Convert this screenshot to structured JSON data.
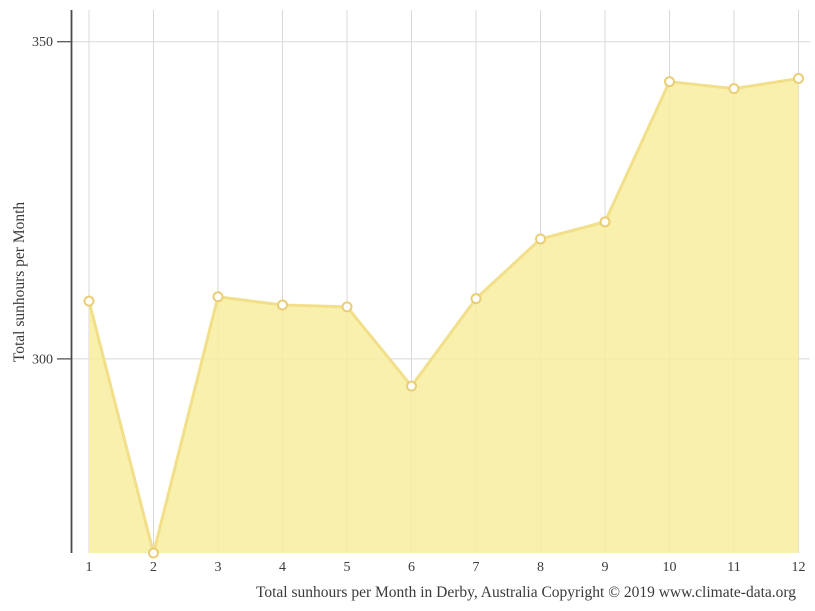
{
  "chart_data": {
    "type": "area",
    "x": [
      1,
      2,
      3,
      4,
      5,
      6,
      7,
      8,
      9,
      10,
      11,
      12
    ],
    "values": [
      309.1,
      269.4,
      309.8,
      308.5,
      308.2,
      295.7,
      309.5,
      318.9,
      321.6,
      343.7,
      342.6,
      344.2
    ],
    "title": "",
    "xlabel": "Total sunhours per Month in Derby, Australia Copyright © 2019 www.climate-data.org",
    "ylabel": "Total sunhours per Month",
    "yticks": [
      300,
      350
    ],
    "ylim": [
      269.4,
      355
    ],
    "grid": true,
    "legend_position": "none",
    "colors": {
      "fill": "#F8EDA0",
      "fill_opacity": 0.85,
      "line": "#F2DF8A",
      "marker_fill": "#FFFFFF",
      "marker_stroke": "#E9CE76",
      "grid": "#D8D8D8",
      "axis": "#4A4A4A",
      "text": "#3A3A3A"
    }
  }
}
